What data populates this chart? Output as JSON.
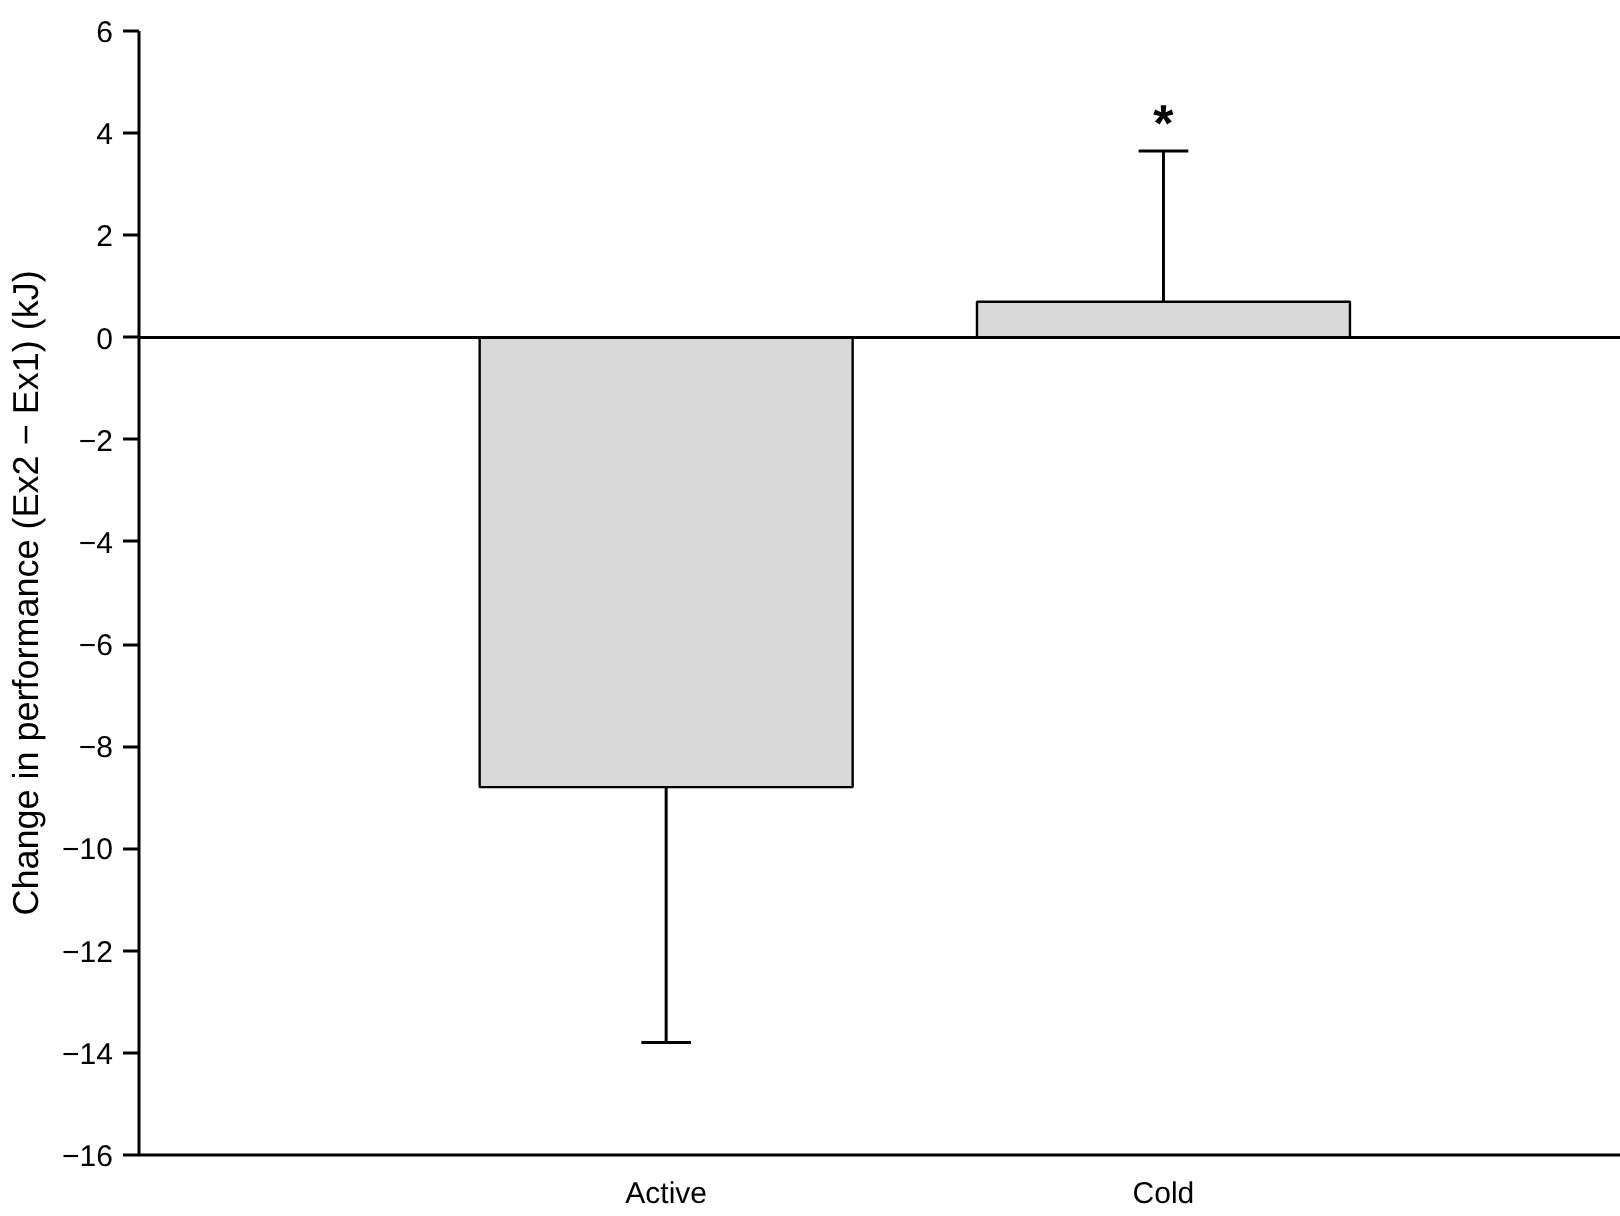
{
  "chart_data": {
    "type": "bar",
    "ylabel": "Change in performance (Ex2 − Ex1) (kJ)",
    "categories": [
      "Active",
      "Cold"
    ],
    "values": [
      -8.8,
      0.7
    ],
    "errors": [
      [
        -13.8,
        -8.8
      ],
      [
        0.7,
        3.65
      ]
    ],
    "color": "#d9d9d9",
    "ylim": [
      -16,
      6
    ],
    "yticks": [
      {
        "value": -16,
        "label": "−16"
      },
      {
        "value": -14,
        "label": "−14"
      },
      {
        "value": -12,
        "label": "−12"
      },
      {
        "value": -10,
        "label": "−10"
      },
      {
        "value": -8,
        "label": "−8"
      },
      {
        "value": -6,
        "label": "−6"
      },
      {
        "value": -4,
        "label": "−4"
      },
      {
        "value": -2,
        "label": "−2"
      },
      0,
      2,
      4,
      6
    ],
    "ref_lines": [
      {
        "axis": "y",
        "value": 0
      }
    ],
    "annotations": [
      "*"
    ],
    "grid": false
  }
}
